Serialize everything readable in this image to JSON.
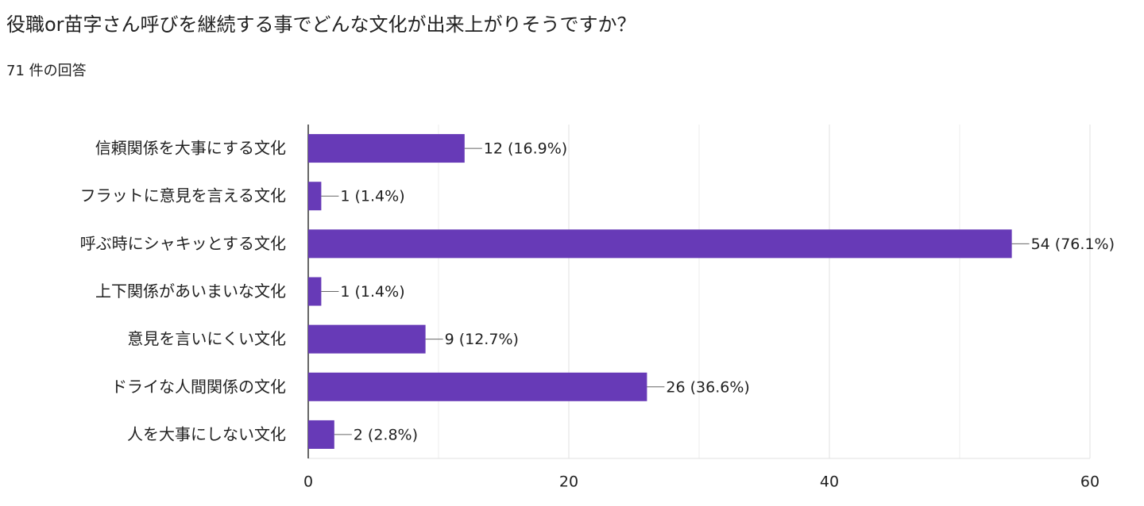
{
  "chart_data": {
    "type": "bar",
    "orientation": "horizontal",
    "title": "役職or苗字さん呼びを継続する事でどんな文化が出来上がりそうですか？",
    "subtitle": "71 件の回答",
    "categories": [
      "信頼関係を大事にする文化",
      "フラットに意見を言える文化",
      "呼ぶ時にシャキッとする文化",
      "上下関係があいまいな文化",
      "意見を言いにくい文化",
      "ドライな人間関係の文化",
      "人を大事にしない文化"
    ],
    "values": [
      12,
      1,
      54,
      1,
      9,
      26,
      2
    ],
    "value_labels": [
      "12 (16.9%)",
      "1 (1.4%)",
      "54 (76.1%)",
      "1 (1.4%)",
      "9 (12.7%)",
      "26 (36.6%)",
      "2 (2.8%)"
    ],
    "color": "#673ab7",
    "xlim": [
      0,
      60
    ],
    "xticks": [
      0,
      20,
      40,
      60
    ],
    "minor_xticks": [
      10,
      30,
      50
    ],
    "grid": true
  }
}
